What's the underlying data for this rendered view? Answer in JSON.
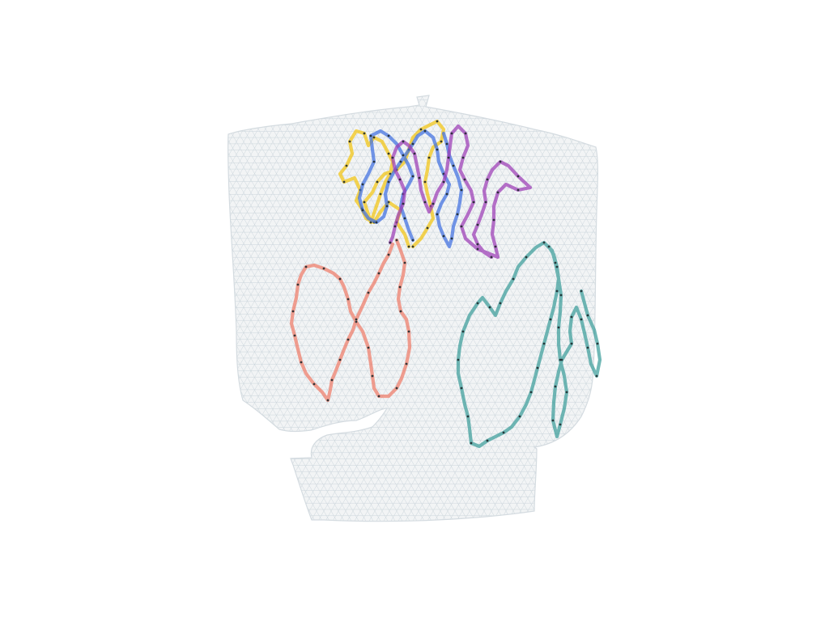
{
  "scene": {
    "background_color": "#ffffff",
    "surface_fill": "#f2f4f5",
    "surface_edge": "#d4dbe0",
    "mesh_color": "#b9c6cf",
    "marker_color": "#1f2a2d"
  },
  "paths": [
    {
      "id": "yellow",
      "color": "#f2c511"
    },
    {
      "id": "blue",
      "color": "#3f6fe0"
    },
    {
      "id": "purple",
      "color": "#9b3bb5"
    },
    {
      "id": "salmon",
      "color": "#ef7b68"
    },
    {
      "id": "teal",
      "color": "#3a9c9a"
    }
  ]
}
